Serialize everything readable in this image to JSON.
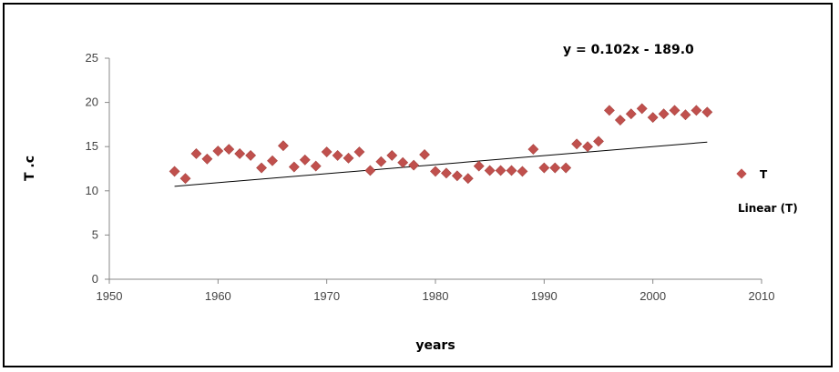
{
  "chart_data": {
    "type": "scatter",
    "title": "",
    "xlabel": "years",
    "ylabel": "T .c",
    "xlim": [
      1950,
      2010
    ],
    "ylim": [
      0,
      25
    ],
    "xticks": [
      "1950",
      "1960",
      "1970",
      "1980",
      "1990",
      "2000",
      "2010"
    ],
    "yticks": [
      "0",
      "5",
      "10",
      "15",
      "20",
      "25"
    ],
    "grid": false,
    "legend_position": "right",
    "series": [
      {
        "name": "T",
        "color": "#c0504d",
        "marker": "diamond",
        "x": [
          1956,
          1957,
          1958,
          1959,
          1960,
          1961,
          1962,
          1963,
          1964,
          1965,
          1966,
          1967,
          1968,
          1969,
          1970,
          1971,
          1972,
          1973,
          1974,
          1975,
          1976,
          1977,
          1978,
          1979,
          1980,
          1981,
          1982,
          1983,
          1984,
          1985,
          1986,
          1987,
          1988,
          1989,
          1990,
          1991,
          1992,
          1993,
          1994,
          1995,
          1996,
          1997,
          1998,
          1999,
          2000,
          2001,
          2002,
          2003,
          2004,
          2005
        ],
        "y": [
          12.2,
          11.4,
          14.2,
          13.6,
          14.5,
          14.7,
          14.2,
          14.0,
          12.6,
          13.4,
          15.1,
          12.7,
          13.5,
          12.8,
          14.4,
          14.0,
          13.7,
          14.4,
          12.3,
          13.3,
          14.0,
          13.2,
          12.9,
          14.1,
          12.2,
          12.0,
          11.7,
          11.4,
          12.8,
          12.3,
          12.3,
          12.3,
          12.2,
          14.7,
          12.6,
          12.6,
          12.6,
          15.3,
          15.0,
          15.6,
          19.1,
          18.0,
          18.7,
          19.3,
          18.3,
          18.7,
          19.1,
          18.6,
          19.1,
          18.9
        ]
      }
    ],
    "trendline": {
      "name": "Linear (T)",
      "equation": "y = 0.102x - 189.0",
      "slope": 0.102,
      "intercept": -189.0,
      "x_range": [
        1956,
        2005
      ],
      "color": "#000000"
    }
  }
}
